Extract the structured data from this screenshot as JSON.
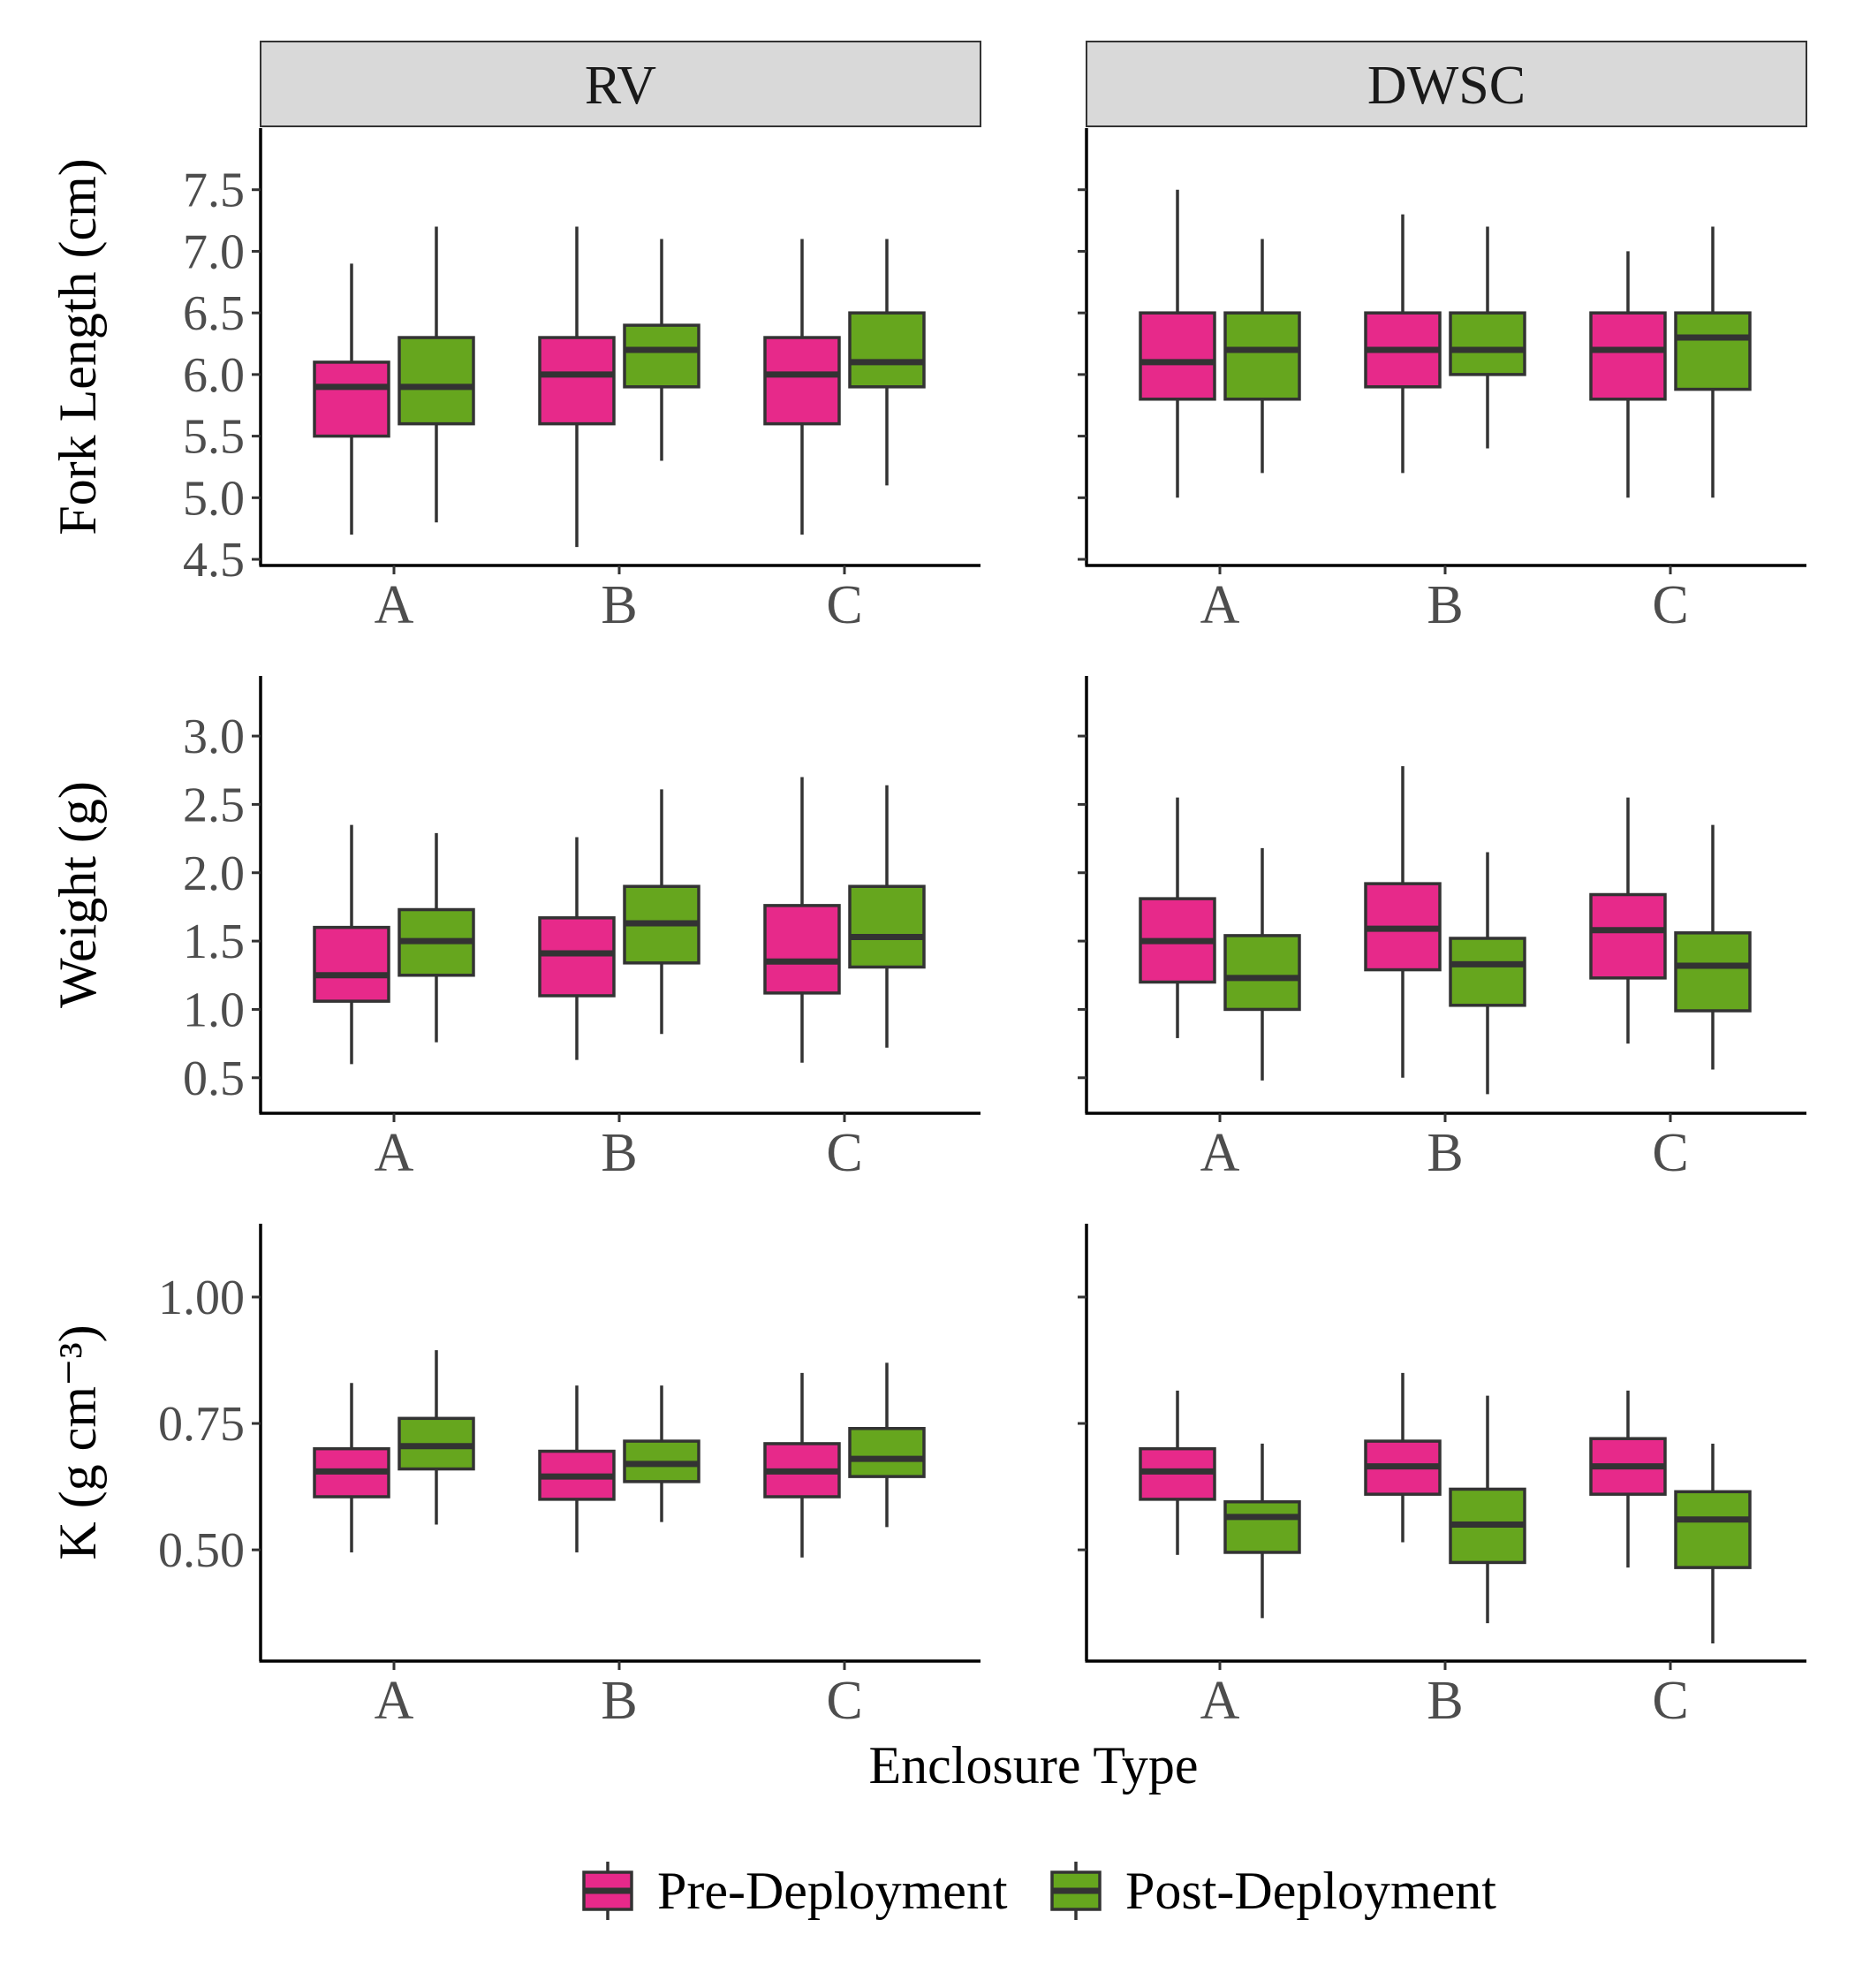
{
  "chart_data": {
    "type": "box",
    "facets": [
      "RV",
      "DWSC"
    ],
    "xlabel": "Enclosure Type",
    "categories": [
      "A",
      "B",
      "C"
    ],
    "legend": {
      "position": "bottom",
      "entries": [
        {
          "name": "Pre-Deployment",
          "color": "#e7298a"
        },
        {
          "name": "Post-Deployment",
          "color": "#66a61e"
        }
      ]
    },
    "panels": [
      {
        "ylabel": "Fork Length (cm)",
        "ylim": [
          4.45,
          8.0
        ],
        "yticks": [
          "4.5",
          "5.0",
          "5.5",
          "6.0",
          "6.5",
          "7.0",
          "7.5"
        ],
        "facets": {
          "RV": {
            "Pre-Deployment": [
              {
                "category": "A",
                "min": 4.7,
                "q1": 5.5,
                "median": 5.9,
                "q3": 6.1,
                "max": 6.9
              },
              {
                "category": "B",
                "min": 4.6,
                "q1": 5.6,
                "median": 6.0,
                "q3": 6.3,
                "max": 7.2
              },
              {
                "category": "C",
                "min": 4.7,
                "q1": 5.6,
                "median": 6.0,
                "q3": 6.3,
                "max": 7.1
              }
            ],
            "Post-Deployment": [
              {
                "category": "A",
                "min": 4.8,
                "q1": 5.6,
                "median": 5.9,
                "q3": 6.3,
                "max": 7.2
              },
              {
                "category": "B",
                "min": 5.3,
                "q1": 5.9,
                "median": 6.2,
                "q3": 6.4,
                "max": 7.1
              },
              {
                "category": "C",
                "min": 5.1,
                "q1": 5.9,
                "median": 6.1,
                "q3": 6.5,
                "max": 7.1
              }
            ]
          },
          "DWSC": {
            "Pre-Deployment": [
              {
                "category": "A",
                "min": 5.0,
                "q1": 5.8,
                "median": 6.1,
                "q3": 6.5,
                "max": 7.5
              },
              {
                "category": "B",
                "min": 5.2,
                "q1": 5.9,
                "median": 6.2,
                "q3": 6.5,
                "max": 7.3
              },
              {
                "category": "C",
                "min": 5.0,
                "q1": 5.8,
                "median": 6.2,
                "q3": 6.5,
                "max": 7.0
              }
            ],
            "Post-Deployment": [
              {
                "category": "A",
                "min": 5.2,
                "q1": 5.8,
                "median": 6.2,
                "q3": 6.5,
                "max": 7.1
              },
              {
                "category": "B",
                "min": 5.4,
                "q1": 6.0,
                "median": 6.2,
                "q3": 6.5,
                "max": 7.2
              },
              {
                "category": "C",
                "min": 5.0,
                "q1": 5.88,
                "median": 6.3,
                "q3": 6.5,
                "max": 7.2
              }
            ]
          }
        }
      },
      {
        "ylabel": "Weight (g)",
        "ylim": [
          0.24,
          3.44
        ],
        "yticks": [
          "0.5",
          "1.0",
          "1.5",
          "2.0",
          "2.5",
          "3.0"
        ],
        "facets": {
          "RV": {
            "Pre-Deployment": [
              {
                "category": "A",
                "min": 0.6,
                "q1": 1.06,
                "median": 1.25,
                "q3": 1.6,
                "max": 2.35
              },
              {
                "category": "B",
                "min": 0.63,
                "q1": 1.1,
                "median": 1.41,
                "q3": 1.67,
                "max": 2.26
              },
              {
                "category": "C",
                "min": 0.61,
                "q1": 1.12,
                "median": 1.35,
                "q3": 1.76,
                "max": 2.7
              }
            ],
            "Post-Deployment": [
              {
                "category": "A",
                "min": 0.76,
                "q1": 1.25,
                "median": 1.5,
                "q3": 1.73,
                "max": 2.29
              },
              {
                "category": "B",
                "min": 0.82,
                "q1": 1.34,
                "median": 1.63,
                "q3": 1.9,
                "max": 2.61
              },
              {
                "category": "C",
                "min": 0.72,
                "q1": 1.31,
                "median": 1.53,
                "q3": 1.9,
                "max": 2.64
              }
            ]
          },
          "DWSC": {
            "Pre-Deployment": [
              {
                "category": "A",
                "min": 0.79,
                "q1": 1.2,
                "median": 1.5,
                "q3": 1.81,
                "max": 2.55
              },
              {
                "category": "B",
                "min": 0.5,
                "q1": 1.29,
                "median": 1.59,
                "q3": 1.92,
                "max": 2.78
              },
              {
                "category": "C",
                "min": 0.75,
                "q1": 1.23,
                "median": 1.58,
                "q3": 1.84,
                "max": 2.55
              }
            ],
            "Post-Deployment": [
              {
                "category": "A",
                "min": 0.48,
                "q1": 1.0,
                "median": 1.23,
                "q3": 1.54,
                "max": 2.18
              },
              {
                "category": "B",
                "min": 0.38,
                "q1": 1.03,
                "median": 1.33,
                "q3": 1.52,
                "max": 2.15
              },
              {
                "category": "C",
                "min": 0.56,
                "q1": 0.99,
                "median": 1.32,
                "q3": 1.56,
                "max": 2.35
              }
            ]
          }
        }
      },
      {
        "ylabel": "K (g cm⁻³)",
        "ylim": [
          0.28,
          1.145
        ],
        "yticks": [
          "0.50",
          "0.75",
          "1.00"
        ],
        "facets": {
          "RV": {
            "Pre-Deployment": [
              {
                "category": "A",
                "min": 0.495,
                "q1": 0.605,
                "median": 0.655,
                "q3": 0.7,
                "max": 0.83
              },
              {
                "category": "B",
                "min": 0.495,
                "q1": 0.6,
                "median": 0.645,
                "q3": 0.695,
                "max": 0.825
              },
              {
                "category": "C",
                "min": 0.485,
                "q1": 0.605,
                "median": 0.655,
                "q3": 0.71,
                "max": 0.85
              }
            ],
            "Post-Deployment": [
              {
                "category": "A",
                "min": 0.55,
                "q1": 0.66,
                "median": 0.705,
                "q3": 0.76,
                "max": 0.895
              },
              {
                "category": "B",
                "min": 0.555,
                "q1": 0.635,
                "median": 0.67,
                "q3": 0.715,
                "max": 0.825
              },
              {
                "category": "C",
                "min": 0.545,
                "q1": 0.645,
                "median": 0.68,
                "q3": 0.74,
                "max": 0.87
              }
            ]
          },
          "DWSC": {
            "Pre-Deployment": [
              {
                "category": "A",
                "min": 0.49,
                "q1": 0.6,
                "median": 0.655,
                "q3": 0.7,
                "max": 0.815
              },
              {
                "category": "B",
                "min": 0.515,
                "q1": 0.61,
                "median": 0.665,
                "q3": 0.715,
                "max": 0.85
              },
              {
                "category": "C",
                "min": 0.465,
                "q1": 0.61,
                "median": 0.665,
                "q3": 0.72,
                "max": 0.815
              }
            ],
            "Post-Deployment": [
              {
                "category": "A",
                "min": 0.365,
                "q1": 0.495,
                "median": 0.565,
                "q3": 0.595,
                "max": 0.71
              },
              {
                "category": "B",
                "min": 0.355,
                "q1": 0.475,
                "median": 0.55,
                "q3": 0.62,
                "max": 0.805
              },
              {
                "category": "C",
                "min": 0.315,
                "q1": 0.465,
                "median": 0.56,
                "q3": 0.615,
                "max": 0.71
              }
            ]
          }
        }
      }
    ]
  }
}
